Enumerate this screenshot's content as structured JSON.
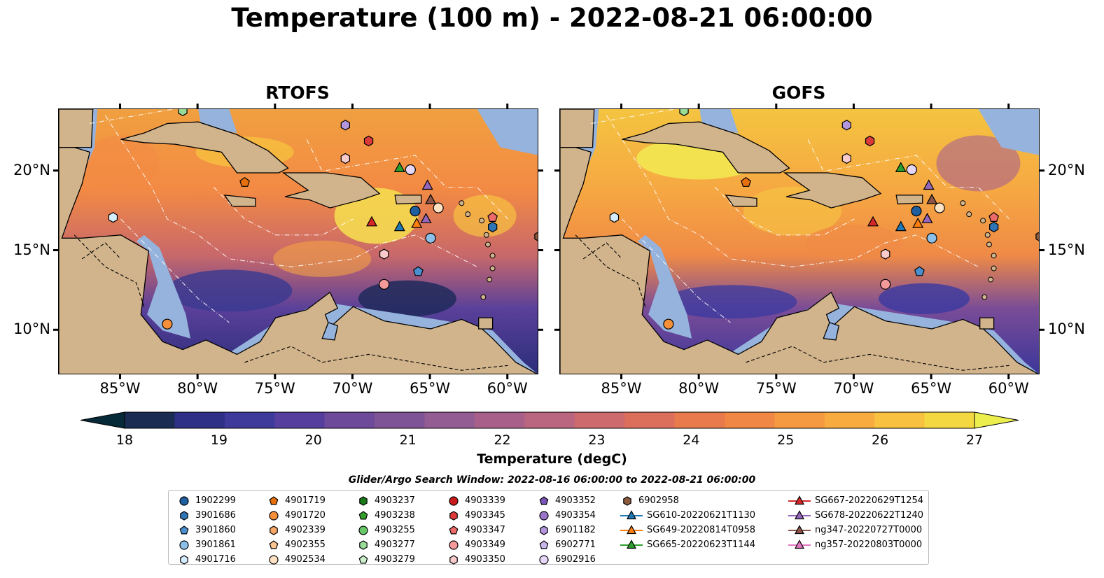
{
  "title": "Temperature (100 m) - 2022-08-21 06:00:00",
  "panels": [
    {
      "title": "RTOFS"
    },
    {
      "title": "GOFS"
    }
  ],
  "axes": {
    "lon_ticks": [
      "85°W",
      "80°W",
      "75°W",
      "70°W",
      "65°W",
      "60°W"
    ],
    "lat_ticks": [
      "20°N",
      "15°N",
      "10°N"
    ]
  },
  "colorbar": {
    "label": "Temperature (degC)",
    "ticks": [
      "18",
      "19",
      "20",
      "21",
      "22",
      "23",
      "24",
      "25",
      "26",
      "27"
    ],
    "range": [
      18,
      27
    ],
    "colors": [
      "#062a38",
      "#1a2c52",
      "#2e2f86",
      "#3e3a9c",
      "#563e9e",
      "#6e4a9a",
      "#7f5496",
      "#935c92",
      "#a8608a",
      "#bb6680",
      "#cc6a6e",
      "#dc6f5c",
      "#e87a4c",
      "#f18744",
      "#f69a42",
      "#f8ac40",
      "#f8c240",
      "#f4d842",
      "#ecee4e"
    ],
    "extend": "both"
  },
  "search_window": "Glider/Argo Search Window: 2022-08-16 06:00:00 to 2022-08-21 06:00:00",
  "legend": {
    "columns": [
      [
        {
          "label": "1902299",
          "shape": "circle",
          "color": "#1f5fa0"
        },
        {
          "label": "3901686",
          "shape": "hexagon",
          "color": "#2f74b5"
        },
        {
          "label": "3901860",
          "shape": "pentagon",
          "color": "#4a8fd0"
        },
        {
          "label": "3901861",
          "shape": "circle",
          "color": "#8cc0e8"
        },
        {
          "label": "4901716",
          "shape": "hexagon",
          "color": "#d4ecfb"
        }
      ],
      [
        {
          "label": "4901719",
          "shape": "pentagon",
          "color": "#e8700c"
        },
        {
          "label": "4901720",
          "shape": "circle",
          "color": "#f58f3a"
        },
        {
          "label": "4902339",
          "shape": "hexagon",
          "color": "#f8a866"
        },
        {
          "label": "4902355",
          "shape": "pentagon",
          "color": "#fbc593"
        },
        {
          "label": "4902534",
          "shape": "circle",
          "color": "#fde2c4"
        }
      ],
      [
        {
          "label": "4903237",
          "shape": "hexagon",
          "color": "#1a7a1a"
        },
        {
          "label": "4903238",
          "shape": "pentagon",
          "color": "#33a02c"
        },
        {
          "label": "4903255",
          "shape": "circle",
          "color": "#66c866"
        },
        {
          "label": "4903277",
          "shape": "hexagon",
          "color": "#98dc98"
        },
        {
          "label": "4903279",
          "shape": "pentagon",
          "color": "#ccf2cc"
        }
      ],
      [
        {
          "label": "4903339",
          "shape": "circle",
          "color": "#c81a1a"
        },
        {
          "label": "4903345",
          "shape": "hexagon",
          "color": "#dd3a3a"
        },
        {
          "label": "4903347",
          "shape": "pentagon",
          "color": "#ee6a6a"
        },
        {
          "label": "4903349",
          "shape": "circle",
          "color": "#f59a9a"
        },
        {
          "label": "4903350",
          "shape": "hexagon",
          "color": "#fbcaca"
        }
      ],
      [
        {
          "label": "4903352",
          "shape": "pentagon",
          "color": "#7a52b8"
        },
        {
          "label": "4903354",
          "shape": "circle",
          "color": "#9a74c8"
        },
        {
          "label": "6901182",
          "shape": "hexagon",
          "color": "#b496dc"
        },
        {
          "label": "6902771",
          "shape": "pentagon",
          "color": "#cdb6ec"
        },
        {
          "label": "6902916",
          "shape": "circle",
          "color": "#e6d6f8"
        }
      ],
      [
        {
          "label": "6902958",
          "shape": "hexagon",
          "color": "#8c5a3c"
        },
        {
          "label": "SG610-20220621T1130",
          "shape": "triangle",
          "color": "#1f77b4",
          "line": true
        },
        {
          "label": "SG649-20220814T0958",
          "shape": "triangle",
          "color": "#ff7f0e",
          "line": true
        },
        {
          "label": "SG665-20220623T1144",
          "shape": "triangle",
          "color": "#2ca02c",
          "line": true
        }
      ],
      [
        {
          "label": "SG667-20220629T1254",
          "shape": "triangle",
          "color": "#d62728",
          "line": true
        },
        {
          "label": "SG678-20220622T1240",
          "shape": "triangle",
          "color": "#9467bd",
          "line": true
        },
        {
          "label": "ng347-20220727T0000",
          "shape": "triangle",
          "color": "#8c564b",
          "line": true
        },
        {
          "label": "ng357-20220803T0000",
          "shape": "triangle",
          "color": "#e377c2",
          "line": true
        }
      ]
    ]
  },
  "markers": [
    {
      "lon": -66.0,
      "lat": 17.5,
      "shape": "circle",
      "color": "#1f5fa0"
    },
    {
      "lon": -61.0,
      "lat": 16.5,
      "shape": "hexagon",
      "color": "#2f74b5"
    },
    {
      "lon": -65.8,
      "lat": 13.7,
      "shape": "pentagon",
      "color": "#4a8fd0"
    },
    {
      "lon": -65.0,
      "lat": 15.8,
      "shape": "circle",
      "color": "#8cc0e8"
    },
    {
      "lon": -85.5,
      "lat": 17.1,
      "shape": "hexagon",
      "color": "#d4ecfb"
    },
    {
      "lon": -77.0,
      "lat": 19.3,
      "shape": "pentagon",
      "color": "#e8700c"
    },
    {
      "lon": -82.0,
      "lat": 10.4,
      "shape": "circle",
      "color": "#f58f3a"
    },
    {
      "lon": -58.0,
      "lat": 15.9,
      "shape": "hexagon",
      "color": "#8c5a3c"
    },
    {
      "lon": -81.0,
      "lat": 23.8,
      "shape": "hexagon",
      "color": "#98dc98"
    },
    {
      "lon": -70.5,
      "lat": 22.9,
      "shape": "hexagon",
      "color": "#b496dc"
    },
    {
      "lon": -69.0,
      "lat": 21.9,
      "shape": "hexagon",
      "color": "#dd3a3a"
    },
    {
      "lon": -70.5,
      "lat": 20.8,
      "shape": "hexagon",
      "color": "#fbcaca"
    },
    {
      "lon": -61.0,
      "lat": 17.1,
      "shape": "pentagon",
      "color": "#ee6a6a"
    },
    {
      "lon": -68.0,
      "lat": 14.8,
      "shape": "hexagon",
      "color": "#fbcaca"
    },
    {
      "lon": -68.0,
      "lat": 12.9,
      "shape": "circle",
      "color": "#f59a9a"
    },
    {
      "lon": -64.5,
      "lat": 17.7,
      "shape": "circle",
      "color": "#fde2c4"
    },
    {
      "lon": -66.3,
      "lat": 20.1,
      "shape": "circle",
      "color": "#e6d6f8"
    },
    {
      "lon": -67.0,
      "lat": 20.2,
      "shape": "triangle",
      "color": "#2ca02c"
    },
    {
      "lon": -65.2,
      "lat": 19.1,
      "shape": "triangle",
      "color": "#9467bd"
    },
    {
      "lon": -65.0,
      "lat": 18.2,
      "shape": "triangle",
      "color": "#8c564b"
    },
    {
      "lon": -68.8,
      "lat": 16.8,
      "shape": "triangle",
      "color": "#d62728"
    },
    {
      "lon": -67.0,
      "lat": 16.5,
      "shape": "triangle",
      "color": "#1f77b4"
    },
    {
      "lon": -65.9,
      "lat": 16.7,
      "shape": "triangle",
      "color": "#ff7f0e"
    },
    {
      "lon": -65.3,
      "lat": 17.0,
      "shape": "triangle",
      "color": "#9467bd"
    }
  ],
  "colors": {
    "land": "#d2b48c",
    "shelf": "#95b3dc",
    "deep": "#062a38"
  }
}
